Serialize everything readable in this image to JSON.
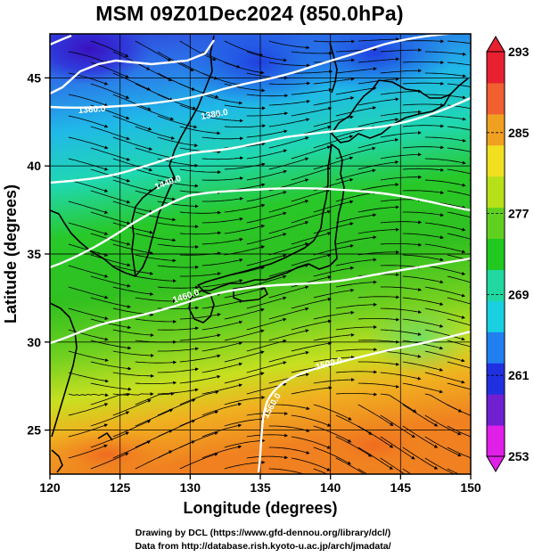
{
  "title": "MSM 09Z01Dec2024 (850.0hPa)",
  "map": {
    "xlabel": "Longitude (degrees)",
    "ylabel": "Latitude  (degrees)",
    "xlim": [
      120,
      150
    ],
    "ylim": [
      22.5,
      47.5
    ],
    "x_ticks": [
      120,
      125,
      130,
      135,
      140,
      145,
      150
    ],
    "y_ticks": [
      25,
      30,
      35,
      40,
      45
    ],
    "field": "temperature",
    "vector_field": "wind streamlines",
    "colors": {
      "cold": "#2030d8",
      "cool": "#18c8e8",
      "mild": "#18c018",
      "warm": "#c8e020",
      "hot": "#f08020",
      "contour": "#ffffff",
      "coast": "#000000"
    }
  },
  "colorbar": {
    "ticks": [
      "293",
      "285",
      "277",
      "269",
      "261",
      "253"
    ],
    "range": [
      253,
      293
    ],
    "colors": [
      "#e020e8",
      "#7020d0",
      "#2030e0",
      "#2080f0",
      "#18d0e0",
      "#20d8a0",
      "#20c820",
      "#60d020",
      "#b8e018",
      "#f0e020",
      "#f0a020",
      "#f06030",
      "#e82030"
    ]
  },
  "contour_labels": [
    "1360.0",
    "1380.0",
    "1440.0",
    "1460.0",
    "1500.0",
    "1560.0"
  ],
  "credits": {
    "line1": "Drawing by DCL (https://www.gfd-dennou.org/library/dcl/)",
    "line2": "Data from http://database.rish.kyoto-u.ac.jp/arch/jmadata/"
  }
}
